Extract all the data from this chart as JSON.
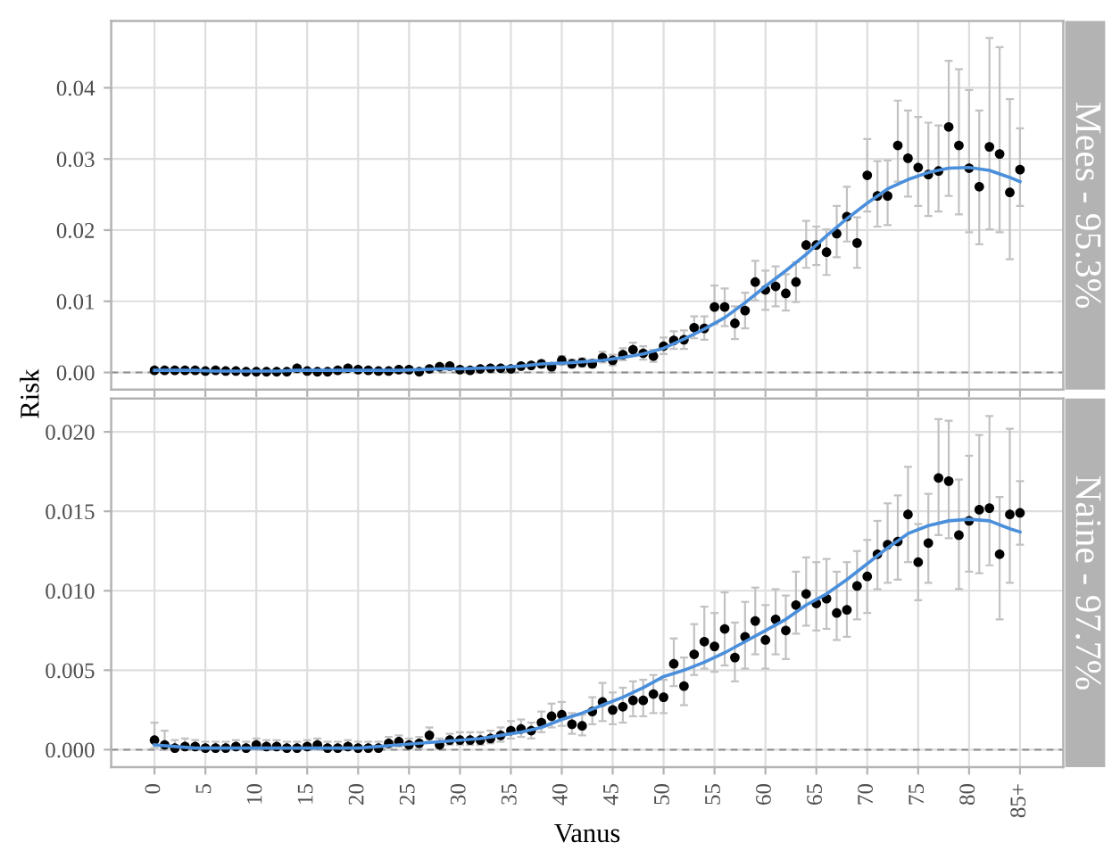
{
  "chart_data": [
    {
      "type": "scatter",
      "title": "Mees - 95.3%",
      "ylabel": "Risk",
      "tick_labels": "y",
      "x": [
        0,
        1,
        2,
        3,
        4,
        5,
        6,
        7,
        8,
        9,
        10,
        11,
        12,
        13,
        14,
        15,
        16,
        17,
        18,
        19,
        20,
        21,
        22,
        23,
        24,
        25,
        26,
        27,
        28,
        29,
        30,
        31,
        32,
        33,
        34,
        35,
        36,
        37,
        38,
        39,
        40,
        41,
        42,
        43,
        44,
        45,
        46,
        47,
        48,
        49,
        50,
        51,
        52,
        53,
        54,
        55,
        56,
        57,
        58,
        59,
        60,
        61,
        62,
        63,
        64,
        65,
        66,
        67,
        68,
        69,
        70,
        71,
        72,
        73,
        74,
        75,
        76,
        77,
        78,
        79,
        80,
        81,
        82,
        83,
        84,
        85
      ],
      "xlim": [
        -4.25,
        89.25
      ],
      "xticks": [
        0,
        5,
        10,
        15,
        20,
        25,
        30,
        35,
        40,
        45,
        50,
        55,
        60,
        65,
        70,
        75,
        80,
        85
      ],
      "ylim": [
        -0.0024,
        0.0494
      ],
      "yticks": [
        {
          "value": 0,
          "label": "0.00"
        },
        0.01,
        0.02,
        0.03,
        0.04
      ],
      "grid": true,
      "ref_lines": [
        {
          "axis": "y",
          "value": 0,
          "color": "#8c8c8c",
          "line_style": "dashed"
        }
      ],
      "series": [
        {
          "color": "#000000",
          "marker": "circle",
          "values": [
            0.0003,
            0.0003,
            0.0003,
            0.0003,
            0.0003,
            0.0002,
            0.0003,
            0.0002,
            0.0002,
            0.0001,
            0.0001,
            0.0001,
            0.0001,
            0.0001,
            0.0006,
            0.0002,
            0.0001,
            0.0001,
            0.0003,
            0.0006,
            0.0004,
            0.0003,
            0.0002,
            0.0002,
            0.0004,
            0.0004,
            0.0001,
            0.0005,
            0.0008,
            0.0009,
            0.0004,
            0.0003,
            0.0005,
            0.0006,
            0.0006,
            0.0005,
            0.0009,
            0.001,
            0.0012,
            0.0008,
            0.0017,
            0.0012,
            0.0014,
            0.0012,
            0.0021,
            0.0017,
            0.0025,
            0.0032,
            0.0027,
            0.0023,
            0.0037,
            0.0045,
            0.0046,
            0.0063,
            0.0062,
            0.0092,
            0.0092,
            0.0069,
            0.0087,
            0.0127,
            0.0116,
            0.0121,
            0.0111,
            0.0127,
            0.0179,
            0.0179,
            0.0169,
            0.0195,
            0.0219,
            0.0182,
            0.0277,
            0.0248,
            0.0248,
            0.0319,
            0.0301,
            0.0288,
            0.0278,
            0.0283,
            0.0345,
            0.0319,
            0.0287,
            0.0261,
            0.0317,
            0.0307,
            0.0253,
            0.0285
          ],
          "errors": [
            null,
            null,
            null,
            null,
            null,
            null,
            null,
            null,
            null,
            null,
            null,
            null,
            null,
            null,
            null,
            null,
            null,
            null,
            null,
            null,
            null,
            null,
            null,
            null,
            null,
            null,
            null,
            null,
            null,
            null,
            null,
            null,
            null,
            null,
            null,
            null,
            null,
            null,
            [
              0.0007,
              0.0017
            ],
            [
              0.0004,
              0.0013
            ],
            [
              0.0011,
              0.0023
            ],
            [
              0.0007,
              0.0018
            ],
            [
              0.0008,
              0.002
            ],
            [
              0.0007,
              0.0018
            ],
            [
              0.0014,
              0.0029
            ],
            [
              0.001,
              0.0025
            ],
            [
              0.0017,
              0.0034
            ],
            [
              0.0023,
              0.0042
            ],
            [
              0.0018,
              0.0037
            ],
            [
              0.0015,
              0.0032
            ],
            [
              0.0026,
              0.0049
            ],
            [
              0.0033,
              0.0058
            ],
            [
              0.0033,
              0.0059
            ],
            [
              0.0048,
              0.0079
            ],
            [
              0.0046,
              0.0079
            ],
            [
              0.0068,
              0.0122
            ],
            [
              0.0065,
              0.0118
            ],
            [
              0.0047,
              0.0093
            ],
            [
              0.0062,
              0.0112
            ],
            [
              0.0101,
              0.0157
            ],
            [
              0.0088,
              0.0143
            ],
            [
              0.0093,
              0.0149
            ],
            [
              0.0087,
              0.0138
            ],
            [
              0.0099,
              0.0155
            ],
            [
              0.0147,
              0.0213
            ],
            [
              0.0151,
              0.0205
            ],
            [
              0.0137,
              0.0201
            ],
            [
              0.0162,
              0.0234
            ],
            [
              0.0184,
              0.0261
            ],
            [
              0.0147,
              0.0218
            ],
            [
              0.0226,
              0.0328
            ],
            [
              0.0205,
              0.0297
            ],
            [
              0.0207,
              0.0298
            ],
            [
              0.0268,
              0.0382
            ],
            [
              0.0247,
              0.0368
            ],
            [
              0.0234,
              0.0359
            ],
            [
              0.022,
              0.0351
            ],
            [
              0.0226,
              0.0347
            ],
            [
              0.0248,
              0.0438
            ],
            [
              0.0222,
              0.0426
            ],
            [
              0.0197,
              0.0397
            ],
            [
              0.018,
              0.0368
            ],
            [
              0.0201,
              0.047
            ],
            [
              0.0197,
              0.0457
            ],
            [
              0.0159,
              0.0384
            ],
            [
              0.0234,
              0.0343
            ]
          ]
        },
        {
          "type": "line",
          "color": "#4a8fdc",
          "line_style": "solid",
          "x": [
            0,
            2,
            4,
            6,
            8,
            10,
            12,
            14,
            16,
            18,
            20,
            22,
            24,
            26,
            28,
            30,
            32,
            34,
            36,
            38,
            40,
            42,
            44,
            46,
            48,
            50,
            52,
            54,
            56,
            58,
            60,
            62,
            64,
            66,
            68,
            70,
            72,
            74,
            76,
            78,
            80,
            82,
            84,
            85
          ],
          "values": [
            0.0003,
            0.0003,
            0.0003,
            0.0002,
            0.0002,
            0.0002,
            0.0002,
            0.0003,
            0.0003,
            0.0003,
            0.0003,
            0.0003,
            0.0003,
            0.0004,
            0.0005,
            0.0005,
            0.0006,
            0.0007,
            0.0009,
            0.0012,
            0.0013,
            0.0015,
            0.0017,
            0.0021,
            0.0026,
            0.0034,
            0.0047,
            0.0061,
            0.0077,
            0.0098,
            0.0121,
            0.0143,
            0.0166,
            0.0192,
            0.0216,
            0.0238,
            0.0258,
            0.0271,
            0.0281,
            0.0287,
            0.0288,
            0.0284,
            0.0274,
            0.0268
          ]
        }
      ]
    },
    {
      "type": "scatter",
      "title": "Naine - 97.7%",
      "xlabel": "Vanus",
      "x": [
        0,
        1,
        2,
        3,
        4,
        5,
        6,
        7,
        8,
        9,
        10,
        11,
        12,
        13,
        14,
        15,
        16,
        17,
        18,
        19,
        20,
        21,
        22,
        23,
        24,
        25,
        26,
        27,
        28,
        29,
        30,
        31,
        32,
        33,
        34,
        35,
        36,
        37,
        38,
        39,
        40,
        41,
        42,
        43,
        44,
        45,
        46,
        47,
        48,
        49,
        50,
        51,
        52,
        53,
        54,
        55,
        56,
        57,
        58,
        59,
        60,
        61,
        62,
        63,
        64,
        65,
        66,
        67,
        68,
        69,
        70,
        71,
        72,
        73,
        74,
        75,
        76,
        77,
        78,
        79,
        80,
        81,
        82,
        83,
        84,
        85
      ],
      "xlim": [
        -4.25,
        89.25
      ],
      "xticks": [
        0,
        5,
        10,
        15,
        20,
        25,
        30,
        35,
        40,
        45,
        50,
        55,
        60,
        65,
        70,
        75,
        80,
        {
          "value": 85,
          "label": "85+"
        }
      ],
      "ylim": [
        -0.0011,
        0.0221
      ],
      "yticks": [
        {
          "value": 0,
          "label": "0.000"
        },
        0.005,
        {
          "value": 0.01,
          "label": "0.010"
        },
        0.015,
        {
          "value": 0.02,
          "label": "0.020"
        }
      ],
      "grid": true,
      "ref_lines": [
        {
          "axis": "y",
          "value": 0,
          "color": "#8c8c8c",
          "line_style": "dashed"
        }
      ],
      "series": [
        {
          "color": "#000000",
          "marker": "circle",
          "values": [
            0.0006,
            0.0003,
            0.0001,
            0.0002,
            0.0002,
            0.0001,
            0.0001,
            0.0001,
            0.0002,
            0.0001,
            0.0003,
            0.0002,
            0.0002,
            0.0001,
            0.0001,
            0.0002,
            0.0003,
            0.0001,
            0.0001,
            0.0002,
            0.0001,
            0.0001,
            0.0001,
            0.0004,
            0.0005,
            0.0003,
            0.0004,
            0.0009,
            0.0003,
            0.0006,
            0.0006,
            0.0006,
            0.0006,
            0.0007,
            0.0009,
            0.0012,
            0.0013,
            0.0012,
            0.0017,
            0.0021,
            0.0022,
            0.0016,
            0.0015,
            0.0024,
            0.003,
            0.0025,
            0.0027,
            0.0031,
            0.0031,
            0.0035,
            0.0033,
            0.0054,
            0.004,
            0.006,
            0.0068,
            0.0065,
            0.0076,
            0.0058,
            0.0071,
            0.0081,
            0.0069,
            0.0082,
            0.0075,
            0.0091,
            0.0098,
            0.0092,
            0.0095,
            0.0086,
            0.0088,
            0.0103,
            0.0109,
            0.0123,
            0.0129,
            0.0131,
            0.0148,
            0.0118,
            0.013,
            0.0171,
            0.0169,
            0.0135,
            0.0144,
            0.0151,
            0.0152,
            0.0123,
            0.0148,
            0.0149
          ],
          "errors": [
            [
              0.0001,
              0.0017
            ],
            [
              0,
              0.0012
            ],
            [
              0,
              0.0006
            ],
            [
              0,
              0.0007
            ],
            [
              0,
              0.0006
            ],
            [
              0,
              0.0005
            ],
            [
              0,
              0.0005
            ],
            [
              0,
              0.0005
            ],
            [
              0,
              0.0006
            ],
            [
              0,
              0.0005
            ],
            [
              0,
              0.0007
            ],
            [
              0,
              0.0006
            ],
            [
              0,
              0.0006
            ],
            [
              0,
              0.0005
            ],
            [
              0,
              0.0005
            ],
            [
              0,
              0.0006
            ],
            [
              0,
              0.0007
            ],
            [
              0,
              0.0005
            ],
            [
              0,
              0.0005
            ],
            [
              0,
              0.0006
            ],
            [
              0,
              0.0005
            ],
            [
              0,
              0.0005
            ],
            [
              0,
              0.0005
            ],
            [
              0.0001,
              0.0008
            ],
            [
              0.0002,
              0.0009
            ],
            [
              0.0001,
              0.0007
            ],
            [
              0.0001,
              0.0008
            ],
            [
              0.0005,
              0.0014
            ],
            [
              0.0001,
              0.0007
            ],
            [
              0.0003,
              0.001
            ],
            [
              0.0003,
              0.0011
            ],
            [
              0.0003,
              0.0011
            ],
            [
              0.0003,
              0.0011
            ],
            [
              0.0004,
              0.0012
            ],
            [
              0.0005,
              0.0014
            ],
            [
              0.0007,
              0.0018
            ],
            [
              0.0008,
              0.0019
            ],
            [
              0.0007,
              0.0017
            ],
            [
              0.0011,
              0.0024
            ],
            [
              0.0014,
              0.0029
            ],
            [
              0.0015,
              0.003
            ],
            [
              0.001,
              0.0023
            ],
            [
              0.0009,
              0.0022
            ],
            [
              0.0016,
              0.0033
            ],
            [
              0.0018,
              0.0042
            ],
            [
              0.0016,
              0.0036
            ],
            [
              0.0017,
              0.0039
            ],
            [
              0.0021,
              0.0043
            ],
            [
              0.0021,
              0.0044
            ],
            [
              0.0023,
              0.0047
            ],
            [
              0.0023,
              0.0044
            ],
            [
              0.004,
              0.007
            ],
            [
              0.0028,
              0.0058
            ],
            [
              0.0047,
              0.0079
            ],
            [
              0.0051,
              0.009
            ],
            [
              0.0049,
              0.0086
            ],
            [
              0.0053,
              0.0099
            ],
            [
              0.0043,
              0.008
            ],
            [
              0.0051,
              0.0093
            ],
            [
              0.006,
              0.0102
            ],
            [
              0.0051,
              0.0091
            ],
            [
              0.006,
              0.0101
            ],
            [
              0.0057,
              0.0097
            ],
            [
              0.0073,
              0.0112
            ],
            [
              0.0078,
              0.0121
            ],
            [
              0.0075,
              0.0118
            ],
            [
              0.0076,
              0.012
            ],
            [
              0.0069,
              0.0112
            ],
            [
              0.0071,
              0.0118
            ],
            [
              0.0082,
              0.0125
            ],
            [
              0.0086,
              0.0132
            ],
            [
              0.0101,
              0.0144
            ],
            [
              0.0105,
              0.0155
            ],
            [
              0.0107,
              0.016
            ],
            [
              0.0118,
              0.0178
            ],
            [
              0.0094,
              0.0142
            ],
            [
              0.0105,
              0.0161
            ],
            [
              0.0135,
              0.0208
            ],
            [
              0.0133,
              0.0207
            ],
            [
              0.0101,
              0.017
            ],
            [
              0.0112,
              0.0185
            ],
            [
              0.0111,
              0.0198
            ],
            [
              0.0116,
              0.021
            ],
            [
              0.0082,
              0.0159
            ],
            [
              0.0105,
              0.0202
            ],
            [
              0.0129,
              0.0169
            ]
          ]
        },
        {
          "type": "line",
          "color": "#4a8fdc",
          "line_style": "solid",
          "x": [
            0,
            2,
            4,
            6,
            8,
            10,
            12,
            14,
            16,
            18,
            20,
            22,
            24,
            26,
            28,
            30,
            32,
            34,
            36,
            38,
            40,
            42,
            44,
            46,
            48,
            50,
            52,
            54,
            56,
            58,
            60,
            62,
            64,
            66,
            68,
            70,
            72,
            74,
            76,
            78,
            80,
            82,
            84,
            85
          ],
          "values": [
            0.0003,
            0.0002,
            0.0001,
            0.0001,
            0.0001,
            0.0001,
            0.0001,
            0.0001,
            0.0001,
            0.0001,
            0.0001,
            0.0002,
            0.0003,
            0.0004,
            0.0005,
            0.0006,
            0.0007,
            0.0009,
            0.0011,
            0.0014,
            0.0019,
            0.0023,
            0.0028,
            0.0033,
            0.0039,
            0.0046,
            0.005,
            0.0055,
            0.0061,
            0.0068,
            0.0075,
            0.0082,
            0.0091,
            0.0098,
            0.0107,
            0.0117,
            0.0127,
            0.0136,
            0.0141,
            0.0144,
            0.0145,
            0.0144,
            0.0139,
            0.0137
          ]
        }
      ]
    }
  ]
}
